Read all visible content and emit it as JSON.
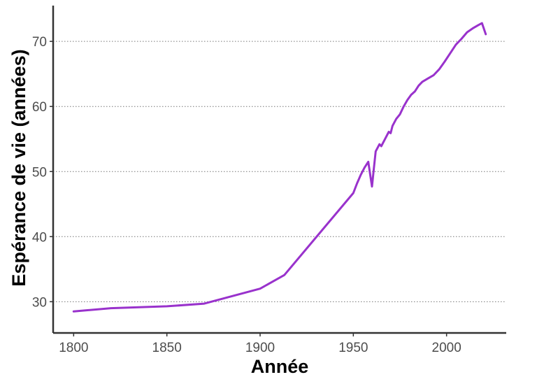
{
  "chart_data": {
    "type": "line",
    "title": "",
    "xlabel": "Année",
    "ylabel": "Espérance de vie (années)",
    "xlim": [
      1789,
      2032
    ],
    "ylim": [
      25.2,
      75.5
    ],
    "x_ticks": [
      1800,
      1850,
      1900,
      1950,
      2000
    ],
    "y_ticks": [
      30,
      40,
      50,
      60,
      70
    ],
    "grid": "horizontal-dotted",
    "legend": "none",
    "series": [
      {
        "color": "#9932CC",
        "points": [
          [
            1800,
            28.5
          ],
          [
            1820,
            29.0
          ],
          [
            1850,
            29.3
          ],
          [
            1870,
            29.7
          ],
          [
            1900,
            32.0
          ],
          [
            1913,
            34.1
          ],
          [
            1950,
            46.7
          ],
          [
            1952,
            48.2
          ],
          [
            1954,
            49.5
          ],
          [
            1956,
            50.6
          ],
          [
            1958,
            51.5
          ],
          [
            1960,
            47.7
          ],
          [
            1961,
            50.5
          ],
          [
            1962,
            53.1
          ],
          [
            1964,
            54.2
          ],
          [
            1965,
            53.9
          ],
          [
            1967,
            55.0
          ],
          [
            1969,
            56.1
          ],
          [
            1970,
            55.9
          ],
          [
            1971,
            57.0
          ],
          [
            1973,
            58.1
          ],
          [
            1975,
            58.8
          ],
          [
            1977,
            60.0
          ],
          [
            1979,
            61.0
          ],
          [
            1981,
            61.8
          ],
          [
            1983,
            62.3
          ],
          [
            1985,
            63.2
          ],
          [
            1987,
            63.8
          ],
          [
            1990,
            64.3
          ],
          [
            1993,
            64.8
          ],
          [
            1996,
            65.7
          ],
          [
            1999,
            66.9
          ],
          [
            2002,
            68.2
          ],
          [
            2005,
            69.5
          ],
          [
            2008,
            70.4
          ],
          [
            2011,
            71.4
          ],
          [
            2014,
            72.0
          ],
          [
            2017,
            72.5
          ],
          [
            2019,
            72.8
          ],
          [
            2021,
            71.1
          ]
        ]
      }
    ]
  }
}
